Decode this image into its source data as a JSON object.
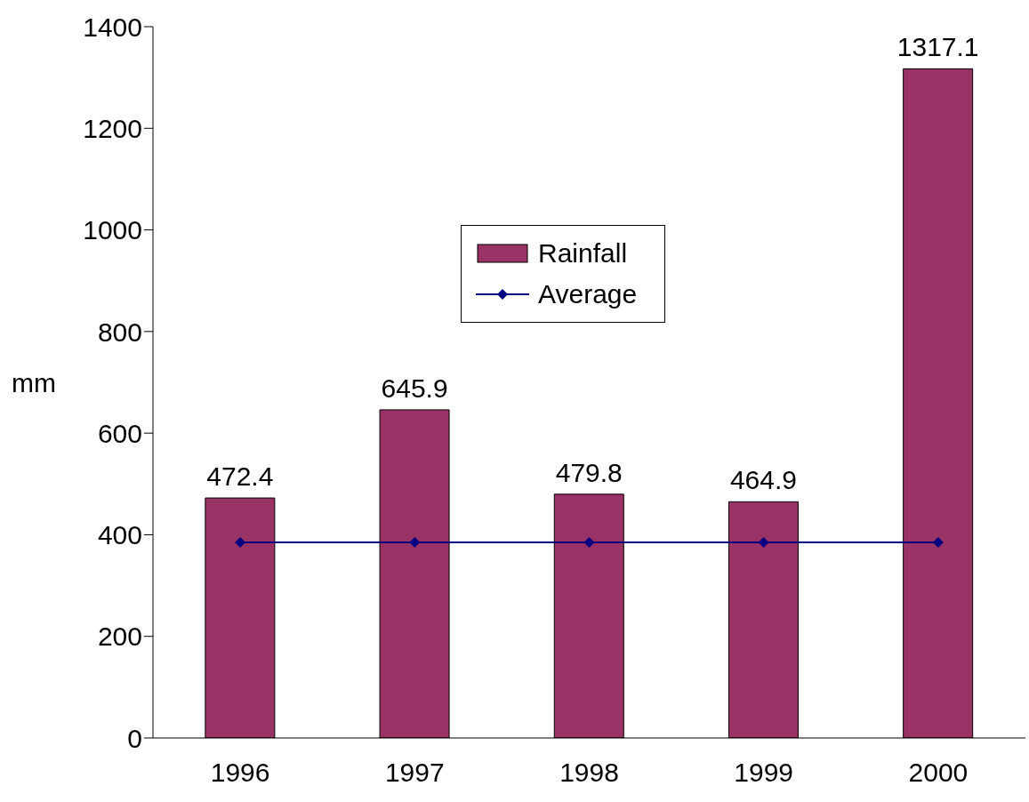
{
  "chart_data": {
    "type": "bar",
    "ylabel": "mm",
    "categories": [
      "1996",
      "1997",
      "1998",
      "1999",
      "2000"
    ],
    "series": [
      {
        "name": "Rainfall",
        "color": "#993366",
        "values": [
          472.4,
          645.9,
          479.8,
          464.9,
          1317.1
        ],
        "value_labels": [
          "472.4",
          "645.9",
          "479.8",
          "464.9",
          "1317.1"
        ]
      },
      {
        "name": "Average",
        "type": "line",
        "color": "#000080",
        "marker": "diamond",
        "values": [
          385,
          385,
          385,
          385,
          385
        ]
      }
    ],
    "ylim": [
      0,
      1400
    ],
    "yticks": [
      0,
      200,
      400,
      600,
      800,
      1000,
      1200,
      1400
    ],
    "grid": false,
    "legend": "center"
  }
}
